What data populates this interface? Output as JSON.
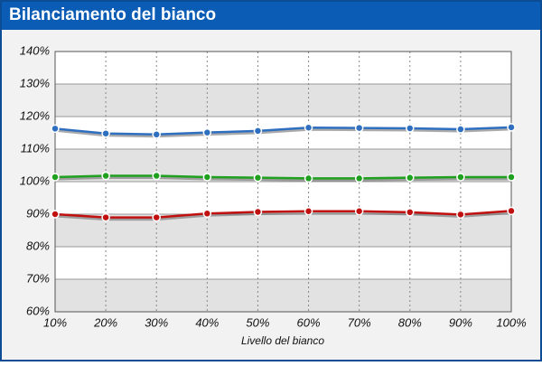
{
  "chart_data": {
    "type": "line",
    "title": "Bilanciamento del bianco",
    "x_label": "Livello del bianco",
    "categories": [
      "10%",
      "20%",
      "30%",
      "40%",
      "50%",
      "60%",
      "70%",
      "80%",
      "90%",
      "100%"
    ],
    "series": [
      {
        "color": "#2f6fc0",
        "values": [
          116.3,
          114.8,
          114.5,
          115.1,
          115.6,
          116.6,
          116.5,
          116.4,
          116.1,
          116.7
        ]
      },
      {
        "color": "#1fa01f",
        "values": [
          101.4,
          101.8,
          101.8,
          101.4,
          101.2,
          101.0,
          101.0,
          101.2,
          101.4,
          101.4
        ]
      },
      {
        "color": "#c01010",
        "values": [
          90.0,
          89.0,
          89.0,
          90.2,
          90.7,
          90.9,
          90.9,
          90.6,
          89.9,
          91.0
        ]
      }
    ],
    "ylim": [
      60,
      140
    ],
    "yticks": [
      {
        "value": 60,
        "label": "60%"
      },
      {
        "value": 70,
        "label": "70%"
      },
      {
        "value": 80,
        "label": "80%"
      },
      {
        "value": 90,
        "label": "90%"
      },
      {
        "value": 100,
        "label": "100%"
      },
      {
        "value": 110,
        "label": "110%"
      },
      {
        "value": 120,
        "label": "120%"
      },
      {
        "value": 130,
        "label": "130%"
      },
      {
        "value": 140,
        "label": "140%"
      }
    ],
    "grid": true
  }
}
